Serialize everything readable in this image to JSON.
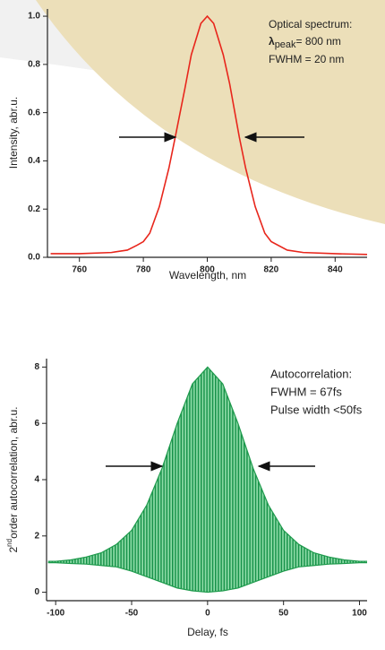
{
  "chart_data": [
    {
      "type": "line",
      "xlabel": "Wavelength, nm",
      "ylabel": "Intensity, abr.u.",
      "annotation": {
        "title": "Optical spectrum:",
        "peak": {
          "symbol": "λ",
          "subscript": "peak",
          "text": "= 800 nm"
        },
        "fwhm": "FWHM = 20 nm"
      },
      "x": [
        751,
        760,
        770,
        775,
        778,
        780,
        782,
        785,
        788,
        790,
        793,
        795,
        798,
        800,
        802,
        805,
        807,
        810,
        812,
        815,
        818,
        820,
        825,
        830,
        840,
        850
      ],
      "values": [
        0.015,
        0.015,
        0.02,
        0.03,
        0.05,
        0.065,
        0.1,
        0.21,
        0.37,
        0.5,
        0.7,
        0.84,
        0.97,
        1.0,
        0.97,
        0.84,
        0.72,
        0.5,
        0.37,
        0.21,
        0.1,
        0.065,
        0.03,
        0.02,
        0.015,
        0.012
      ],
      "color": "#e8261c",
      "xlim": [
        750,
        850
      ],
      "xticks": [
        760,
        780,
        800,
        820,
        840
      ],
      "ylim": [
        0,
        1.03
      ],
      "yticks": [
        {
          "value": 0,
          "label": "0.0"
        },
        0.2,
        0.4,
        0.6,
        0.8,
        {
          "value": 1,
          "label": "1.0"
        }
      ]
    },
    {
      "type": "band",
      "xlabel": "Delay, fs",
      "ylabel": {
        "prefix": "2",
        "superscript": "nd",
        "text": "order autocorrelation, abr.u."
      },
      "annotation": [
        "Autocorrelation:",
        "FWHM = 67fs",
        "Pulse width <50fs"
      ],
      "x": [
        -105,
        -100,
        -90,
        -80,
        -70,
        -60,
        -50,
        -40,
        -30,
        -20,
        -10,
        0,
        10,
        20,
        30,
        40,
        50,
        60,
        70,
        80,
        90,
        100,
        105
      ],
      "upper": [
        1.1,
        1.1,
        1.15,
        1.25,
        1.4,
        1.7,
        2.2,
        3.1,
        4.4,
        6.0,
        7.4,
        8.0,
        7.4,
        6.0,
        4.4,
        3.1,
        2.2,
        1.7,
        1.4,
        1.25,
        1.15,
        1.1,
        1.1
      ],
      "lower": [
        1.05,
        1.05,
        1.02,
        1.0,
        0.95,
        0.9,
        0.75,
        0.55,
        0.35,
        0.15,
        0.05,
        0.0,
        0.05,
        0.15,
        0.35,
        0.55,
        0.75,
        0.9,
        0.95,
        1.0,
        1.02,
        1.05,
        1.05
      ],
      "color": "#1e9a4c",
      "xlim": [
        -106,
        105
      ],
      "xticks": [
        -100,
        -50,
        0,
        50,
        100
      ],
      "ylim": [
        -0.3,
        8.3
      ],
      "yticks": [
        0,
        2,
        4,
        6,
        8
      ]
    }
  ]
}
